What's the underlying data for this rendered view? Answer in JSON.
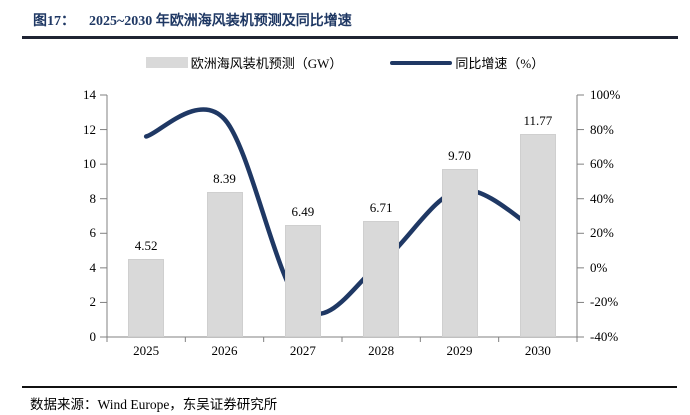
{
  "figure": {
    "label": "图17：",
    "title": "2025~2030 年欧洲海风装机预测及同比增速"
  },
  "legend": {
    "bar_label": "欧洲海风装机预测（GW）",
    "line_label": "同比增速（%）"
  },
  "footer": {
    "source": "数据来源：Wind Europe，东吴证券研究所"
  },
  "colors": {
    "navy": "#1f3864",
    "title_text": "#1f3864",
    "bar_fill": "#d9d9d9",
    "bar_edge": "#cfcfcf",
    "axis": "#808080",
    "text": "#000000"
  },
  "chart_data": {
    "type": "bar",
    "title": "2025~2030 年欧洲海风装机预测及同比增速",
    "categories": [
      "2025",
      "2026",
      "2027",
      "2028",
      "2029",
      "2030"
    ],
    "series": [
      {
        "name": "欧洲海风装机预测（GW）",
        "type": "bar",
        "axis": "left",
        "values": [
          4.52,
          8.39,
          6.49,
          6.71,
          9.7,
          11.77
        ]
      },
      {
        "name": "同比增速（%）",
        "type": "line",
        "axis": "right",
        "values": [
          76,
          86,
          -23,
          3,
          45,
          21
        ]
      }
    ],
    "left_axis": {
      "min": 0,
      "max": 14,
      "step": 2,
      "tick_labels": [
        "0",
        "2",
        "4",
        "6",
        "8",
        "10",
        "12",
        "14"
      ]
    },
    "right_axis": {
      "min": -40,
      "max": 100,
      "step": 20,
      "tick_labels": [
        "-40%",
        "-20%",
        "0%",
        "20%",
        "40%",
        "60%",
        "80%",
        "100%"
      ]
    },
    "grid": false,
    "legend_position": "top",
    "data_label_decimals": 2
  }
}
